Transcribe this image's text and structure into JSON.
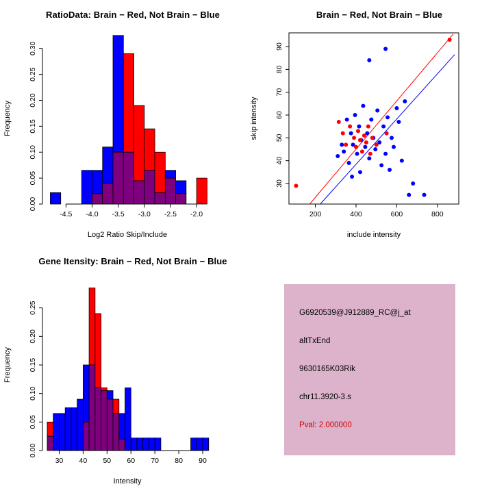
{
  "page": {
    "background": "#ffffff"
  },
  "panels": {
    "ratio_hist_title": "RatioData: Brain − Red, Not Brain − Blue",
    "scatter_title": "Brain − Red, Not Brain − Blue",
    "gene_hist_title": "Gene Itensity: Brain − Red, Not Brain − Blue"
  },
  "info_box": {
    "background": "#ddb3cb",
    "probe_id": "G6920539@J912889_RC@j_at",
    "event_type": "altTxEnd",
    "gene_symbol": "9630165K03Rik",
    "location": "chr11.3920-3.s",
    "pval": "Pval: 2.000000",
    "pval_color": "#cc0000",
    "text_color": "#000000"
  },
  "chart_data": [
    {
      "id": "ratio-hist",
      "type": "histogram",
      "title": "RatioData: Brain − Red, Not Brain − Blue",
      "xlabel": "Log2 Ratio Skip/Include",
      "ylabel": "Frequency",
      "xlim": [
        -4.95,
        -1.7
      ],
      "ylim": [
        0,
        0.33
      ],
      "xticks": [
        -4.5,
        -4.0,
        -3.5,
        -3.0,
        -2.5,
        -2.0
      ],
      "xtick_labels": [
        "-4.5",
        "-4.0",
        "-3.5",
        "-3.0",
        "-2.5",
        "-2.0"
      ],
      "yticks": [
        0,
        0.05,
        0.1,
        0.15,
        0.2,
        0.25,
        0.3
      ],
      "ytick_labels": [
        "0.00",
        "0.05",
        "0.10",
        "0.15",
        "0.20",
        "0.25",
        "0.30"
      ],
      "bin_width": 0.2,
      "bin_edges": [
        -4.8,
        -4.6,
        -4.4,
        -4.2,
        -4.0,
        -3.8,
        -3.6,
        -3.4,
        -3.2,
        -3.0,
        -2.8,
        -2.6,
        -2.4,
        -2.2,
        -2.0
      ],
      "overlap_color": "#7f007f",
      "series": [
        {
          "name": "Not Brain",
          "color": "#0000ff",
          "values": [
            0.022,
            0,
            0,
            0.065,
            0.065,
            0.11,
            0.325,
            0.1,
            0.045,
            0.065,
            0.022,
            0.065,
            0.045,
            0,
            0
          ]
        },
        {
          "name": "Brain",
          "color": "#ff0000",
          "values": [
            0,
            0,
            0,
            0,
            0.02,
            0.04,
            0.1,
            0.29,
            0.19,
            0.145,
            0.1,
            0.05,
            0.02,
            0,
            0.05
          ]
        }
      ],
      "grid": false,
      "legend": "none"
    },
    {
      "id": "intensity-scatter",
      "type": "scatter",
      "title": "Brain − Red, Not Brain − Blue",
      "xlabel": "include intensity",
      "ylabel": "skip intensity",
      "xlim": [
        70,
        905
      ],
      "ylim": [
        21,
        96
      ],
      "xticks": [
        200,
        400,
        600,
        800
      ],
      "xtick_labels": [
        "200",
        "400",
        "600",
        "800"
      ],
      "yticks": [
        30,
        40,
        50,
        60,
        70,
        80,
        90
      ],
      "ytick_labels": [
        "30",
        "40",
        "50",
        "60",
        "70",
        "80",
        "90"
      ],
      "series": [
        {
          "name": "Not Brain",
          "color": "#0000ff",
          "points": [
            [
              310,
              42
            ],
            [
              330,
              47
            ],
            [
              340,
              44
            ],
            [
              355,
              58
            ],
            [
              365,
              39
            ],
            [
              375,
              52
            ],
            [
              380,
              33
            ],
            [
              385,
              47
            ],
            [
              395,
              60
            ],
            [
              405,
              43
            ],
            [
              415,
              55
            ],
            [
              420,
              35
            ],
            [
              425,
              49
            ],
            [
              435,
              64
            ],
            [
              445,
              46
            ],
            [
              455,
              52
            ],
            [
              465,
              41
            ],
            [
              465,
              84
            ],
            [
              475,
              58
            ],
            [
              485,
              50
            ],
            [
              495,
              45
            ],
            [
              505,
              62
            ],
            [
              515,
              48
            ],
            [
              525,
              38
            ],
            [
              535,
              55
            ],
            [
              545,
              43
            ],
            [
              545,
              89
            ],
            [
              555,
              59
            ],
            [
              565,
              36
            ],
            [
              575,
              50
            ],
            [
              585,
              46
            ],
            [
              600,
              63
            ],
            [
              610,
              57
            ],
            [
              625,
              40
            ],
            [
              640,
              66
            ],
            [
              660,
              25
            ],
            [
              680,
              30
            ],
            [
              735,
              25
            ]
          ]
        },
        {
          "name": "Brain",
          "color": "#ff0000",
          "points": [
            [
              105,
              29
            ],
            [
              315,
              57
            ],
            [
              335,
              52
            ],
            [
              350,
              47
            ],
            [
              370,
              55
            ],
            [
              390,
              50
            ],
            [
              400,
              46
            ],
            [
              410,
              53
            ],
            [
              420,
              49
            ],
            [
              430,
              44
            ],
            [
              440,
              51
            ],
            [
              450,
              48
            ],
            [
              460,
              55
            ],
            [
              470,
              43
            ],
            [
              480,
              50
            ],
            [
              500,
              47
            ],
            [
              550,
              52
            ],
            [
              860,
              93
            ]
          ]
        }
      ],
      "lines": [
        {
          "name": "brain-fit",
          "color": "#ff0000",
          "x1": 172,
          "y1": 21,
          "x2": 878,
          "y2": 95.5
        },
        {
          "name": "not-brain-fit",
          "color": "#0000ff",
          "x1": 224,
          "y1": 21,
          "x2": 885,
          "y2": 86.5
        }
      ],
      "grid": false,
      "legend": "none"
    },
    {
      "id": "gene-hist",
      "type": "histogram",
      "title": "Gene Itensity: Brain − Red, Not Brain − Blue",
      "xlabel": "Intensity",
      "ylabel": "Frequency",
      "xlim": [
        23,
        94
      ],
      "ylim": [
        0,
        0.3
      ],
      "xticks": [
        30,
        40,
        50,
        60,
        70,
        80,
        90
      ],
      "xtick_labels": [
        "30",
        "40",
        "50",
        "60",
        "70",
        "80",
        "90"
      ],
      "yticks": [
        0,
        0.05,
        0.1,
        0.15,
        0.2,
        0.25
      ],
      "ytick_labels": [
        "0.00",
        "0.05",
        "0.10",
        "0.15",
        "0.20",
        "0.25"
      ],
      "bin_width": 2.5,
      "bin_edges": [
        25,
        27.5,
        30,
        32.5,
        35,
        37.5,
        40,
        42.5,
        45,
        47.5,
        50,
        52.5,
        55,
        57.5,
        60,
        62.5,
        65,
        67.5,
        70,
        72.5,
        75,
        77.5,
        80,
        82.5,
        85,
        87.5,
        90
      ],
      "overlap_color": "#7f007f",
      "series": [
        {
          "name": "Not Brain",
          "color": "#0000ff",
          "values": [
            0.025,
            0.065,
            0.065,
            0.075,
            0.075,
            0.09,
            0.15,
            0.15,
            0.11,
            0.105,
            0.105,
            0.065,
            0.065,
            0.11,
            0.022,
            0.022,
            0.022,
            0.022,
            0.022,
            0,
            0,
            0,
            0,
            0,
            0.022,
            0.022,
            0.022
          ]
        },
        {
          "name": "Brain",
          "color": "#ff0000",
          "values": [
            0.05,
            0,
            0,
            0,
            0,
            0,
            0.05,
            0.285,
            0.24,
            0.11,
            0.09,
            0.09,
            0.02,
            0,
            0,
            0,
            0,
            0,
            0,
            0,
            0,
            0,
            0,
            0,
            0,
            0,
            0
          ]
        }
      ],
      "grid": false,
      "legend": "none"
    }
  ]
}
